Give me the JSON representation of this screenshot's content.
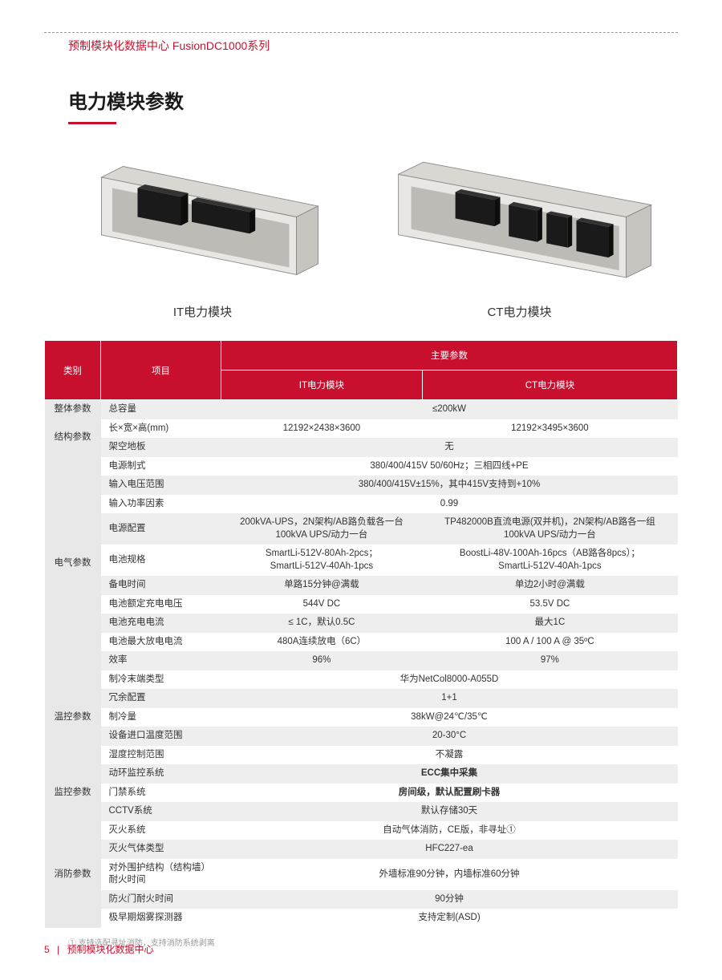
{
  "header": {
    "title": "预制模块化数据中心 FusionDC1000系列"
  },
  "section_title": "电力模块参数",
  "modules": {
    "left_caption": "IT电力模块",
    "right_caption": "CT电力模块"
  },
  "colors": {
    "brand_red": "#c8102e",
    "row_alt": "#eeeeee",
    "cat_bg": "#e8e8e8",
    "container_fill": "#e8e7e4",
    "container_edge": "#8a8884",
    "floor_fill": "#bdbbb6",
    "equip_dark": "#222222"
  },
  "table": {
    "head": {
      "category": "类别",
      "item": "项目",
      "main": "主要参数",
      "col_it": "IT电力模块",
      "col_ct": "CT电力模块"
    },
    "groups": [
      {
        "category": "整体参数",
        "rows": [
          {
            "item": "总容量",
            "it": "≤200kW",
            "span": true
          }
        ]
      },
      {
        "category": "结构参数",
        "rows": [
          {
            "item": "长×宽×高(mm)",
            "it": "12192×2438×3600",
            "ct": "12192×3495×3600"
          },
          {
            "item": "架空地板",
            "it": "无",
            "span": true
          }
        ]
      },
      {
        "category": "电气参数",
        "rows": [
          {
            "item": "电源制式",
            "it": "380/400/415V 50/60Hz；三相四线+PE",
            "span": true
          },
          {
            "item": "输入电压范围",
            "it": "380/400/415V±15%，其中415V支持到+10%",
            "span": true
          },
          {
            "item": "输入功率因素",
            "it": "0.99",
            "span": true
          },
          {
            "item": "电源配置",
            "it": "200kVA-UPS，2N架构/AB路负载各一台\n100kVA UPS/动力一台",
            "ct": "TP482000B直流电源(双并机)，2N架构/AB路各一组\n100kVA UPS/动力一台"
          },
          {
            "item": "电池规格",
            "it": "SmartLi-512V-80Ah-2pcs；\nSmartLi-512V-40Ah-1pcs",
            "ct": "BoostLi-48V-100Ah-16pcs（AB路各8pcs）；\nSmartLi-512V-40Ah-1pcs"
          },
          {
            "item": "备电时间",
            "it": "单路15分钟@满载",
            "ct": "单边2小时@满载"
          },
          {
            "item": "电池额定充电电压",
            "it": "544V DC",
            "ct": "53.5V DC"
          },
          {
            "item": "电池充电电流",
            "it": "≤ 1C，默认0.5C",
            "ct": "最大1C"
          },
          {
            "item": "电池最大放电电流",
            "it": "480A连续放电（6C）",
            "ct": "100 A / 100 A @ 35ºC"
          },
          {
            "item": "效率",
            "it": "96%",
            "ct": "97%"
          }
        ]
      },
      {
        "category": "温控参数",
        "rows": [
          {
            "item": "制冷末端类型",
            "it": "华为NetCol8000-A055D",
            "span": true
          },
          {
            "item": "冗余配置",
            "it": "1+1",
            "span": true
          },
          {
            "item": "制冷量",
            "it": "38kW@24℃/35℃",
            "span": true
          },
          {
            "item": "设备进口温度范围",
            "it": "20-30°C",
            "span": true
          },
          {
            "item": "湿度控制范围",
            "it": "不凝露",
            "span": true
          }
        ]
      },
      {
        "category": "监控参数",
        "rows": [
          {
            "item": "动环监控系统",
            "it": "ECC集中采集",
            "span": true,
            "bold": true
          },
          {
            "item": "门禁系统",
            "it": "房间级，默认配置刷卡器",
            "span": true,
            "bold": true
          },
          {
            "item": "CCTV系统",
            "it": "默认存储30天",
            "span": true
          }
        ]
      },
      {
        "category": "消防参数",
        "rows": [
          {
            "item": "灭火系统",
            "it": "自动气体消防，CE版，非寻址①",
            "span": true
          },
          {
            "item": "灭火气体类型",
            "it": "HFC227-ea",
            "span": true
          },
          {
            "item": "对外围护结构（结构墙）耐火时间",
            "it": "外墙标准90分钟，内墙标准60分钟",
            "span": true
          },
          {
            "item": "防火门耐火时间",
            "it": "90分钟",
            "span": true
          },
          {
            "item": "极早期烟雾探测器",
            "it": "支持定制(ASD)",
            "span": true
          }
        ]
      }
    ]
  },
  "footnote": "① 支持选配寻址消防，支持消防系统剥离",
  "footer": {
    "page_num": "5",
    "text": "预制模块化数据中心"
  }
}
